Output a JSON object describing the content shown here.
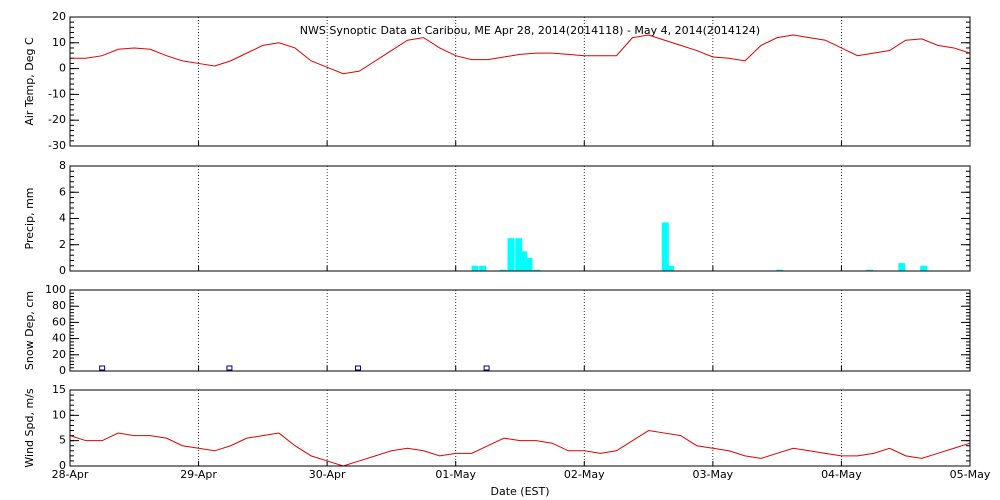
{
  "chart_data": [
    {
      "type": "line",
      "title": "NWS Synoptic Data at Caribou, ME   Apr 28, 2014(2014118) - May  4, 2014(2014124)",
      "ylabel": "Air Temp, Deg C",
      "color": "#e00000",
      "xlim": [
        0,
        7
      ],
      "xticks": [
        1,
        2,
        3,
        4,
        5,
        6
      ],
      "ylim": [
        -30,
        20
      ],
      "yticks": [
        -30,
        -20,
        -10,
        0,
        10,
        20
      ],
      "x": [
        0,
        0.125,
        0.25,
        0.375,
        0.5,
        0.625,
        0.75,
        0.875,
        1,
        1.125,
        1.25,
        1.375,
        1.5,
        1.625,
        1.75,
        1.875,
        2,
        2.125,
        2.25,
        2.375,
        2.5,
        2.625,
        2.75,
        2.875,
        3,
        3.125,
        3.25,
        3.375,
        3.5,
        3.625,
        3.75,
        3.875,
        4,
        4.125,
        4.25,
        4.375,
        4.5,
        4.625,
        4.75,
        4.875,
        5,
        5.125,
        5.25,
        5.375,
        5.5,
        5.625,
        5.75,
        5.875,
        6,
        6.125,
        6.25,
        6.375,
        6.5,
        6.625,
        6.75,
        6.875,
        7
      ],
      "values": [
        4,
        4,
        5,
        7.5,
        8,
        7.5,
        5,
        3,
        2,
        1,
        3,
        6,
        9,
        10,
        8,
        3,
        0.5,
        -2,
        -1,
        3,
        7,
        11,
        12,
        8,
        5,
        3.5,
        3.5,
        4.5,
        5.5,
        6,
        6,
        5.5,
        5,
        5,
        5,
        12,
        13,
        11,
        9,
        7,
        4.5,
        4,
        3,
        9,
        12,
        13,
        12,
        11,
        8,
        5,
        6,
        7,
        11,
        11.5,
        9,
        8,
        6
      ]
    },
    {
      "type": "bar",
      "ylabel": "Precip, mm",
      "color": "#00ffff",
      "xlim": [
        0,
        7
      ],
      "xticks": [
        1,
        2,
        3,
        4,
        5,
        6
      ],
      "ylim": [
        0,
        8
      ],
      "yticks": [
        0,
        2,
        4,
        6,
        8
      ],
      "x": [
        3.15,
        3.21,
        3.37,
        3.43,
        3.49,
        3.53,
        3.57,
        3.63,
        4.63,
        4.67,
        5.52,
        6.22,
        6.47,
        6.64
      ],
      "values": [
        0.4,
        0.4,
        0.1,
        2.5,
        2.5,
        1.5,
        1.0,
        0.1,
        3.7,
        0.4,
        0.1,
        0.1,
        0.6,
        0.4
      ]
    },
    {
      "type": "scatter",
      "ylabel": "Snow Dep, cm",
      "color": "#000080",
      "xlim": [
        0,
        7
      ],
      "xticks": [
        1,
        2,
        3,
        4,
        5,
        6
      ],
      "ylim": [
        0,
        100
      ],
      "yticks": [
        0,
        20,
        40,
        60,
        80,
        100
      ],
      "x": [
        0.25,
        1.24,
        2.24,
        3.24
      ],
      "values": [
        0,
        0,
        0,
        0
      ]
    },
    {
      "type": "line",
      "ylabel": "Wind Spd, m/s",
      "xlabel": "Date (EST)",
      "color": "#e00000",
      "xlim": [
        0,
        7
      ],
      "xticks": [
        {
          "value": 0,
          "label": "28-Apr"
        },
        {
          "value": 1,
          "label": "29-Apr"
        },
        {
          "value": 2,
          "label": "30-Apr"
        },
        {
          "value": 3,
          "label": "01-May"
        },
        {
          "value": 4,
          "label": "02-May"
        },
        {
          "value": 5,
          "label": "03-May"
        },
        {
          "value": 6,
          "label": "04-May"
        },
        {
          "value": 7,
          "label": "05-May"
        }
      ],
      "ylim": [
        0,
        15
      ],
      "yticks": [
        0,
        5,
        10,
        15
      ],
      "x": [
        0,
        0.125,
        0.25,
        0.375,
        0.5,
        0.625,
        0.75,
        0.875,
        1,
        1.125,
        1.25,
        1.375,
        1.5,
        1.625,
        1.75,
        1.875,
        2,
        2.125,
        2.25,
        2.375,
        2.5,
        2.625,
        2.75,
        2.875,
        3,
        3.125,
        3.25,
        3.375,
        3.5,
        3.625,
        3.75,
        3.875,
        4,
        4.125,
        4.25,
        4.375,
        4.5,
        4.625,
        4.75,
        4.875,
        5,
        5.125,
        5.25,
        5.375,
        5.5,
        5.625,
        5.75,
        5.875,
        6,
        6.125,
        6.25,
        6.375,
        6.5,
        6.625,
        6.75,
        6.875,
        7
      ],
      "values": [
        6,
        5,
        5,
        6.5,
        6,
        6,
        5.5,
        4,
        3.5,
        3,
        4,
        5.5,
        6,
        6.5,
        4,
        2,
        1,
        0,
        1,
        2,
        3,
        3.5,
        3,
        2,
        2.5,
        2.5,
        4,
        5.5,
        5,
        5,
        4.5,
        3,
        3,
        2.5,
        3,
        5,
        7,
        6.5,
        6,
        4,
        3.5,
        3,
        2,
        1.5,
        2.5,
        3.5,
        3,
        2.5,
        2,
        2,
        2.5,
        3.5,
        2,
        1.5,
        2.5,
        3.5,
        4.5
      ]
    }
  ]
}
